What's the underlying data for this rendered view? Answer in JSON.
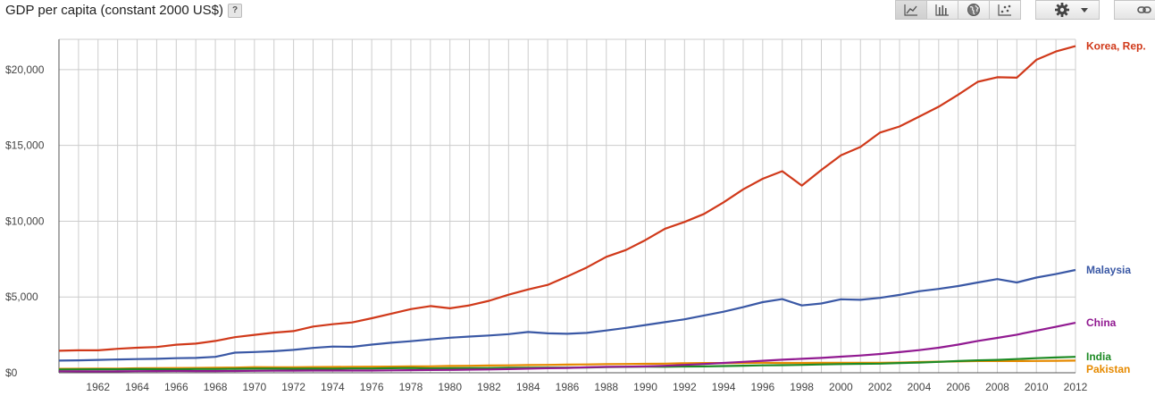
{
  "header": {
    "title": "GDP per capita (constant 2000 US$)",
    "help_label": "?"
  },
  "toolbar": {
    "view_icons": [
      "line-chart-icon",
      "bar-chart-icon",
      "globe-map-icon",
      "scatter-chart-icon"
    ],
    "active_view": "line-chart-icon",
    "settings_icon": "gear-icon",
    "dropdown_icon": "chevron-down-icon",
    "link_icon": "link-icon"
  },
  "chart_data": {
    "type": "line",
    "title": "GDP per capita (constant 2000 US$)",
    "xlabel": "",
    "ylabel": "",
    "xlim": [
      1960,
      2012
    ],
    "ylim": [
      0,
      22000
    ],
    "grid": true,
    "legend": "right-end-labels",
    "x_ticks": [
      1962,
      1964,
      1966,
      1968,
      1970,
      1972,
      1974,
      1976,
      1978,
      1980,
      1982,
      1984,
      1986,
      1988,
      1990,
      1992,
      1994,
      1996,
      1998,
      2000,
      2002,
      2004,
      2006,
      2008,
      2010,
      2012
    ],
    "y_ticks": [
      0,
      5000,
      10000,
      15000,
      20000
    ],
    "y_tick_labels": [
      "$0",
      "$5,000",
      "$10,000",
      "$15,000",
      "$20,000"
    ],
    "x": [
      1960,
      1961,
      1962,
      1963,
      1964,
      1965,
      1966,
      1967,
      1968,
      1969,
      1970,
      1971,
      1972,
      1973,
      1974,
      1975,
      1976,
      1977,
      1978,
      1979,
      1980,
      1981,
      1982,
      1983,
      1984,
      1985,
      1986,
      1987,
      1988,
      1989,
      1990,
      1991,
      1992,
      1993,
      1994,
      1995,
      1996,
      1997,
      1998,
      1999,
      2000,
      2001,
      2002,
      2003,
      2004,
      2005,
      2006,
      2007,
      2008,
      2009,
      2010,
      2011,
      2012
    ],
    "series": [
      {
        "name": "Korea, Rep.",
        "color": "#d0391a",
        "values": [
          1450,
          1480,
          1480,
          1580,
          1650,
          1700,
          1850,
          1920,
          2100,
          2350,
          2500,
          2650,
          2750,
          3050,
          3200,
          3320,
          3600,
          3900,
          4200,
          4400,
          4250,
          4450,
          4750,
          5150,
          5500,
          5800,
          6350,
          6950,
          7650,
          8100,
          8750,
          9500,
          9950,
          10480,
          11250,
          12100,
          12800,
          13300,
          12350,
          13380,
          14350,
          14900,
          15850,
          16250,
          16900,
          17550,
          18350,
          19200,
          19500,
          19470,
          20650,
          21200,
          21550
        ]
      },
      {
        "name": "Malaysia",
        "color": "#3a58a5",
        "values": [
          800,
          820,
          850,
          880,
          900,
          920,
          960,
          980,
          1050,
          1330,
          1370,
          1420,
          1510,
          1640,
          1730,
          1710,
          1860,
          1980,
          2080,
          2200,
          2310,
          2390,
          2460,
          2550,
          2690,
          2600,
          2570,
          2630,
          2790,
          2960,
          3150,
          3340,
          3530,
          3780,
          4030,
          4330,
          4660,
          4860,
          4440,
          4570,
          4850,
          4810,
          4940,
          5140,
          5380,
          5530,
          5720,
          5960,
          6180,
          5960,
          6280,
          6510,
          6780
        ]
      },
      {
        "name": "China",
        "color": "#911a91",
        "values": [
          100,
          95,
          90,
          95,
          105,
          110,
          120,
          115,
          110,
          120,
          130,
          135,
          140,
          145,
          150,
          150,
          150,
          160,
          170,
          180,
          190,
          205,
          220,
          240,
          270,
          300,
          320,
          360,
          390,
          400,
          420,
          460,
          520,
          580,
          650,
          720,
          790,
          860,
          920,
          980,
          1060,
          1140,
          1240,
          1360,
          1490,
          1650,
          1860,
          2100,
          2300,
          2510,
          2780,
          3030,
          3300
        ]
      },
      {
        "name": "India",
        "color": "#1d8a24",
        "values": [
          220,
          225,
          228,
          230,
          240,
          235,
          232,
          248,
          250,
          260,
          270,
          270,
          263,
          270,
          268,
          285,
          285,
          298,
          310,
          290,
          300,
          310,
          315,
          330,
          335,
          340,
          345,
          350,
          375,
          390,
          400,
          395,
          410,
          420,
          440,
          465,
          490,
          500,
          520,
          550,
          570,
          590,
          600,
          640,
          670,
          720,
          770,
          820,
          850,
          900,
          960,
          1010,
          1050
        ]
      },
      {
        "name": "Pakistan",
        "color": "#e68a00",
        "values": [
          260,
          265,
          270,
          280,
          295,
          305,
          315,
          320,
          335,
          345,
          370,
          360,
          365,
          380,
          385,
          395,
          400,
          405,
          420,
          425,
          450,
          460,
          475,
          490,
          505,
          520,
          535,
          550,
          570,
          580,
          590,
          600,
          630,
          640,
          640,
          650,
          660,
          650,
          650,
          655,
          660,
          655,
          660,
          675,
          705,
          730,
          750,
          770,
          770,
          770,
          780,
          790,
          800
        ]
      }
    ]
  }
}
